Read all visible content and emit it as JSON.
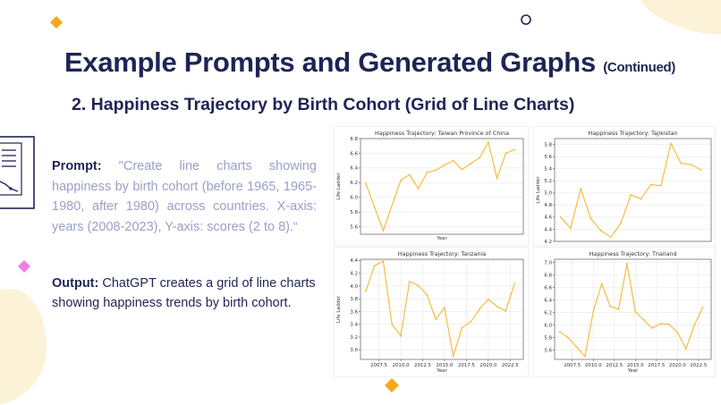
{
  "slide": {
    "title": "Example Prompts and Generated Graphs",
    "title_suffix": "(Continued)",
    "subtitle": "2. Happiness Trajectory by Birth Cohort (Grid of Line Charts)",
    "prompt_label": "Prompt:",
    "prompt_text": "\"Create line charts showing happiness by birth cohort (before 1965, 1965-1980, after 1980) across countries. X-axis: years (2008-2023), Y-axis: scores (2 to 8).“",
    "output_label": "Output:",
    "output_text": " ChatGPT creates a grid of line charts showing happiness trends by birth cohort.",
    "icon": "chart-document-icon"
  },
  "colors": {
    "title": "#1f2455",
    "prompt_text": "#9aa0c6",
    "line": "#f5b833",
    "diamond_orange": "#f6a81a",
    "diamond_pink": "#ee7fe6",
    "blob": "#fbf2d8"
  },
  "chart_data": [
    {
      "type": "line",
      "title": "Happiness Trajectory: Taiwan Province of China",
      "xlabel": "Year",
      "ylabel": "Life Ladder",
      "xlim": [
        2005.4,
        2024.0
      ],
      "ylim": [
        5.5,
        6.8
      ],
      "yticks": [
        5.6,
        5.8,
        6.0,
        6.2,
        6.4,
        6.6,
        6.8
      ],
      "ytick_labels": [
        "5.6",
        "5.8",
        "6.0",
        "6.2",
        "6.4",
        "6.6",
        "6.8"
      ],
      "xticks": [],
      "xtick_labels": [],
      "grid": true,
      "x": [
        2006,
        2008,
        2010,
        2011,
        2012,
        2013,
        2014,
        2015,
        2016,
        2017,
        2018,
        2019,
        2020,
        2021,
        2022,
        2023
      ],
      "values": [
        6.19,
        5.55,
        6.23,
        6.31,
        6.12,
        6.34,
        6.37,
        6.44,
        6.5,
        6.38,
        6.46,
        6.54,
        6.75,
        6.26,
        6.6,
        6.65
      ]
    },
    {
      "type": "line",
      "title": "Happiness Trajectory: Tajikistan",
      "xlabel": "",
      "ylabel": "Life Ladder",
      "xlim": [
        2008.4,
        2024.0
      ],
      "ylim": [
        4.2,
        5.9
      ],
      "yticks": [
        4.2,
        4.4,
        4.6,
        4.8,
        5.0,
        5.2,
        5.4,
        5.6,
        5.8
      ],
      "ytick_labels": [
        "4.2",
        "4.4",
        "4.6",
        "4.8",
        "5.0",
        "5.2",
        "5.4",
        "5.6",
        "5.8"
      ],
      "xticks": [],
      "xtick_labels": [],
      "grid": true,
      "x": [
        2009,
        2010,
        2011,
        2012,
        2013,
        2014,
        2015,
        2016,
        2017,
        2018,
        2019,
        2020,
        2021,
        2022,
        2023
      ],
      "values": [
        4.6,
        4.42,
        5.07,
        4.58,
        4.38,
        4.27,
        4.5,
        4.97,
        4.9,
        5.14,
        5.12,
        5.82,
        5.49,
        5.47,
        5.38
      ]
    },
    {
      "type": "line",
      "title": "Happiness Trajectory: Tanzania",
      "xlabel": "Year",
      "ylabel": "Life Ladder",
      "xlim": [
        2005.4,
        2024.0
      ],
      "ylim": [
        2.85,
        4.42
      ],
      "yticks": [
        3.0,
        3.2,
        3.4,
        3.6,
        3.8,
        4.0,
        4.2,
        4.4
      ],
      "ytick_labels": [
        "3.0",
        "3.2",
        "3.4",
        "3.6",
        "3.8",
        "4.0",
        "4.2",
        "4.4"
      ],
      "xticks": [
        2007.5,
        2010.0,
        2012.5,
        2015.0,
        2017.5,
        2020.0,
        2022.5
      ],
      "xtick_labels": [
        "2007.5",
        "2010.0",
        "2012.5",
        "2015.0",
        "2017.5",
        "2020.0",
        "2022.5"
      ],
      "grid": true,
      "x": [
        2006,
        2007,
        2008,
        2009,
        2010,
        2011,
        2012,
        2013,
        2014,
        2015,
        2016,
        2017,
        2018,
        2019,
        2020,
        2021,
        2022,
        2023
      ],
      "values": [
        3.92,
        4.32,
        4.39,
        3.4,
        3.22,
        4.07,
        4.01,
        3.86,
        3.48,
        3.66,
        2.9,
        3.35,
        3.44,
        3.64,
        3.79,
        3.68,
        3.61,
        4.04
      ]
    },
    {
      "type": "line",
      "title": "Happiness Trajectory: Thailand",
      "xlabel": "Year",
      "ylabel": "",
      "xlim": [
        2005.4,
        2024.0
      ],
      "ylim": [
        5.45,
        7.05
      ],
      "yticks": [
        5.6,
        5.8,
        6.0,
        6.2,
        6.4,
        6.6,
        6.8,
        7.0
      ],
      "ytick_labels": [
        "5.6",
        "5.8",
        "6.0",
        "6.2",
        "6.4",
        "6.6",
        "6.8",
        "7.0"
      ],
      "xticks": [
        2007.5,
        2010.0,
        2012.5,
        2015.0,
        2017.5,
        2020.0,
        2022.5
      ],
      "xtick_labels": [
        "2007.5",
        "2010.0",
        "2012.5",
        "2015.0",
        "2017.5",
        "2020.0",
        "2022.5"
      ],
      "grid": true,
      "x": [
        2006,
        2007,
        2008,
        2009,
        2010,
        2011,
        2012,
        2013,
        2014,
        2015,
        2016,
        2017,
        2018,
        2019,
        2020,
        2021,
        2022,
        2023
      ],
      "values": [
        5.89,
        5.8,
        5.65,
        5.5,
        6.22,
        6.66,
        6.3,
        6.25,
        6.98,
        6.21,
        6.08,
        5.95,
        6.02,
        6.01,
        5.88,
        5.62,
        6.0,
        6.28
      ]
    }
  ]
}
